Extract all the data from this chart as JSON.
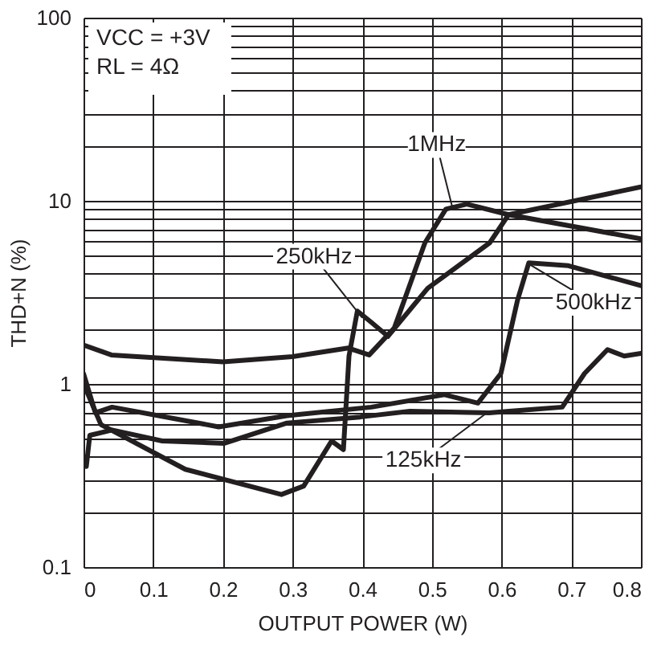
{
  "chart_data": {
    "type": "line",
    "xlabel": "OUTPUT POWER (W)",
    "ylabel": "THD+N (%)",
    "log": "y",
    "xlim": [
      0,
      0.8
    ],
    "xticks": [
      0,
      0.1,
      0.2,
      0.3,
      0.4,
      0.5,
      0.6,
      0.7,
      0.8
    ],
    "ylim": [
      0.1,
      100
    ],
    "yticks": [
      0.1,
      {
        "value": 0.2,
        "label": null
      },
      {
        "value": 0.3,
        "label": null
      },
      {
        "value": 0.4,
        "label": null
      },
      {
        "value": 0.5,
        "label": null
      },
      {
        "value": 0.6,
        "label": null
      },
      {
        "value": 0.7,
        "label": null
      },
      {
        "value": 0.8,
        "label": null
      },
      {
        "value": 0.9,
        "label": null
      },
      1,
      {
        "value": 2,
        "label": null
      },
      {
        "value": 3,
        "label": null
      },
      {
        "value": 4,
        "label": null
      },
      {
        "value": 5,
        "label": null
      },
      {
        "value": 6,
        "label": null
      },
      {
        "value": 7,
        "label": null
      },
      {
        "value": 8,
        "label": null
      },
      {
        "value": 9,
        "label": null
      },
      10,
      {
        "value": 20,
        "label": null
      },
      {
        "value": 30,
        "label": null
      },
      {
        "value": 40,
        "label": null
      },
      {
        "value": 50,
        "label": null
      },
      {
        "value": 60,
        "label": null
      },
      {
        "value": 70,
        "label": null
      },
      {
        "value": 80,
        "label": null
      },
      {
        "value": 90,
        "label": null
      },
      100
    ],
    "grid": true,
    "marker": "none",
    "line_style": "solid",
    "series": [
      {
        "color": "#231f20",
        "x": [
          0,
          0.04,
          0.2,
          0.3,
          0.38,
          0.41,
          0.446,
          0.49,
          0.52,
          0.55,
          0.61,
          0.8
        ],
        "values": [
          1.63,
          1.44,
          1.32,
          1.41,
          1.57,
          1.44,
          2.02,
          5.9,
          9.0,
          9.6,
          8.4,
          6.2
        ]
      },
      {
        "color": "#231f20",
        "x": [
          0,
          0.025,
          0.146,
          0.284,
          0.316,
          0.356,
          0.373,
          0.381,
          0.393,
          0.413,
          0.437,
          0.494,
          0.583,
          0.61,
          0.8
        ],
        "values": [
          1.0,
          0.6,
          0.342,
          0.249,
          0.277,
          0.488,
          0.438,
          1.42,
          2.5,
          2.17,
          1.82,
          3.33,
          5.9,
          8.4,
          11.9
        ]
      },
      {
        "color": "#231f20",
        "x": [
          0,
          0.017,
          0.041,
          0.194,
          0.292,
          0.413,
          0.518,
          0.566,
          0.599,
          0.623,
          0.639,
          0.696,
          0.8
        ],
        "values": [
          1.14,
          0.696,
          0.747,
          0.583,
          0.671,
          0.747,
          0.874,
          0.786,
          1.14,
          2.88,
          4.58,
          4.42,
          3.44
        ]
      },
      {
        "color": "#231f20",
        "x": [
          0.004,
          0.009,
          0.041,
          0.113,
          0.202,
          0.292,
          0.397,
          0.469,
          0.582,
          0.687,
          0.719,
          0.752,
          0.776,
          0.8
        ],
        "values": [
          0.354,
          0.524,
          0.56,
          0.488,
          0.474,
          0.612,
          0.66,
          0.71,
          0.696,
          0.747,
          1.14,
          1.54,
          1.42,
          1.47
        ]
      }
    ],
    "annotations": [
      "VCC = +3V",
      "RL = 4Ω",
      {
        "text": "1MHz",
        "x": 0.53,
        "y": 9.0
      },
      {
        "text": "250kHz",
        "x": 0.4,
        "y": 2.3
      },
      {
        "text": "500kHz",
        "x": 0.64,
        "y": 4.5
      },
      {
        "text": "125kHz",
        "x": 0.58,
        "y": 0.7
      }
    ]
  }
}
